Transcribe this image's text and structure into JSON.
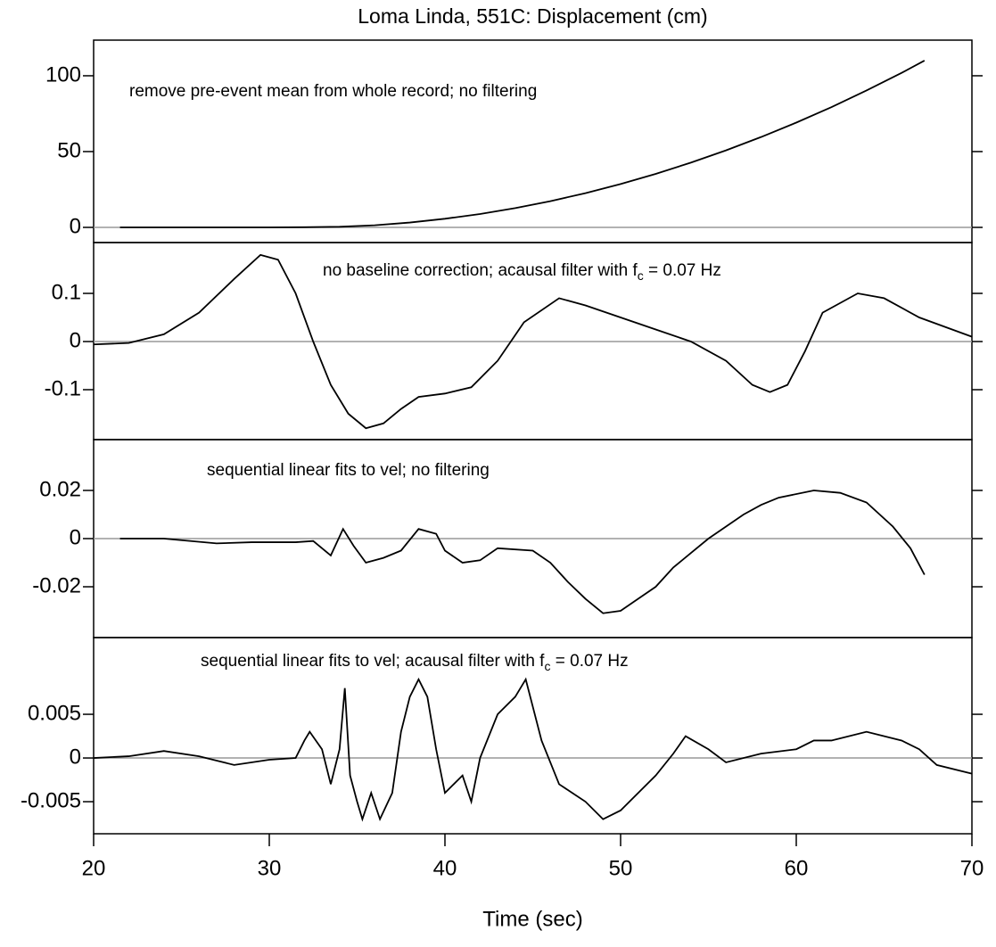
{
  "chart_data": [
    {
      "type": "line",
      "title": "Loma Linda, 551C: Displacement (cm)",
      "annotation": [
        "remove pre-event mean from whole record; no filtering"
      ],
      "x": [
        21.5,
        24,
        26,
        28,
        30,
        32,
        34,
        36,
        38,
        40,
        42,
        44,
        46,
        48,
        50,
        52,
        54,
        56,
        58,
        60,
        62,
        64,
        66,
        67.3
      ],
      "values": [
        0,
        0,
        0,
        0,
        0,
        0.1,
        0.4,
        1.4,
        3.2,
        5.7,
        8.8,
        12.7,
        17.3,
        22.6,
        28.6,
        35.3,
        42.7,
        50.8,
        59.6,
        69.1,
        79.3,
        90.3,
        101.9,
        110
      ],
      "color": "#000000",
      "xlim": [
        20,
        70
      ],
      "ylim": [
        -10,
        123.5
      ],
      "yticks": [
        0,
        50,
        100
      ],
      "zero_line": true
    },
    {
      "type": "line",
      "annotation": [
        "no baseline correction; acausal filter with f",
        "c",
        " = 0.07 Hz"
      ],
      "x": [
        20,
        22,
        24,
        26,
        28,
        29.5,
        30.5,
        31.5,
        32.5,
        33.5,
        34.5,
        35.5,
        36.5,
        37.5,
        38.5,
        40,
        41.5,
        43,
        44.5,
        46.5,
        48,
        50,
        52,
        54,
        56,
        57.5,
        58.5,
        59.5,
        60.5,
        61.5,
        63.5,
        65,
        67,
        70
      ],
      "values": [
        -0.006,
        -0.003,
        0.015,
        0.06,
        0.13,
        0.18,
        0.17,
        0.1,
        0.0,
        -0.09,
        -0.15,
        -0.18,
        -0.17,
        -0.14,
        -0.115,
        -0.108,
        -0.095,
        -0.04,
        0.04,
        0.09,
        0.075,
        0.05,
        0.025,
        0,
        -0.04,
        -0.09,
        -0.105,
        -0.09,
        -0.02,
        0.06,
        0.1,
        0.09,
        0.05,
        0.01
      ],
      "color": "#000000",
      "xlim": [
        20,
        70
      ],
      "ylim": [
        -0.2037,
        0.2056
      ],
      "yticks": [
        -0.1,
        0,
        0.1
      ],
      "zero_line": true
    },
    {
      "type": "line",
      "annotation": [
        "sequential linear fits to vel; no filtering"
      ],
      "x": [
        21.5,
        24,
        27,
        29,
        31.5,
        32.5,
        33.5,
        34.2,
        34.8,
        35.5,
        36.5,
        37.5,
        38.5,
        39.5,
        40,
        41,
        42,
        43,
        45,
        46,
        47,
        48,
        49,
        50,
        51,
        52,
        53,
        54,
        55,
        56,
        57,
        58,
        59,
        61,
        62.5,
        64,
        65.5,
        66.5,
        67.3
      ],
      "values": [
        0,
        0,
        -0.002,
        -0.0015,
        -0.0015,
        -0.001,
        -0.007,
        0.004,
        -0.003,
        -0.01,
        -0.008,
        -0.005,
        0.004,
        0.002,
        -0.005,
        -0.01,
        -0.009,
        -0.004,
        -0.005,
        -0.01,
        -0.018,
        -0.025,
        -0.031,
        -0.03,
        -0.025,
        -0.02,
        -0.012,
        -0.006,
        0,
        0.005,
        0.01,
        0.014,
        0.017,
        0.02,
        0.019,
        0.015,
        0.005,
        -0.004,
        -0.015
      ],
      "color": "#000000",
      "xlim": [
        20,
        70
      ],
      "ylim": [
        -0.0411,
        0.0411
      ],
      "yticks": [
        -0.02,
        0,
        0.02
      ],
      "zero_line": true
    },
    {
      "type": "line",
      "annotation": [
        "sequential linear fits to vel; acausal filter with f",
        "c",
        " = 0.07 Hz"
      ],
      "x": [
        20,
        22,
        24,
        26,
        28,
        30,
        31.5,
        32,
        32.3,
        33,
        33.5,
        34,
        34.3,
        34.6,
        35,
        35.3,
        35.8,
        36.3,
        37,
        37.5,
        38,
        38.5,
        39,
        39.5,
        40,
        40.5,
        41,
        41.5,
        42,
        43,
        44,
        44.6,
        45.5,
        46.5,
        48,
        49,
        50,
        51,
        52,
        53,
        53.7,
        55,
        56,
        58,
        60,
        61,
        62,
        64,
        66,
        67,
        68,
        70
      ],
      "values": [
        0,
        0.0002,
        0.0008,
        0.0002,
        -0.0008,
        -0.0002,
        0,
        0.002,
        0.003,
        0.001,
        -0.003,
        0.001,
        0.008,
        -0.002,
        -0.005,
        -0.007,
        -0.004,
        -0.007,
        -0.004,
        0.003,
        0.007,
        0.009,
        0.007,
        0.001,
        -0.004,
        -0.003,
        -0.002,
        -0.005,
        0,
        0.005,
        0.007,
        0.009,
        0.002,
        -0.003,
        -0.005,
        -0.007,
        -0.006,
        -0.004,
        -0.002,
        0.0005,
        0.0025,
        0.001,
        -0.0005,
        0.0005,
        0.001,
        0.002,
        0.002,
        0.003,
        0.002,
        0.001,
        -0.0008,
        -0.0018
      ],
      "color": "#000000",
      "xlim": [
        20,
        70
      ],
      "ylim": [
        -0.00867,
        0.01378
      ],
      "yticks": [
        -0.005,
        0,
        0.005
      ],
      "zero_line": true,
      "xticks": [
        20,
        30,
        40,
        50,
        60,
        70
      ],
      "xlabel": "Time (sec)"
    }
  ]
}
